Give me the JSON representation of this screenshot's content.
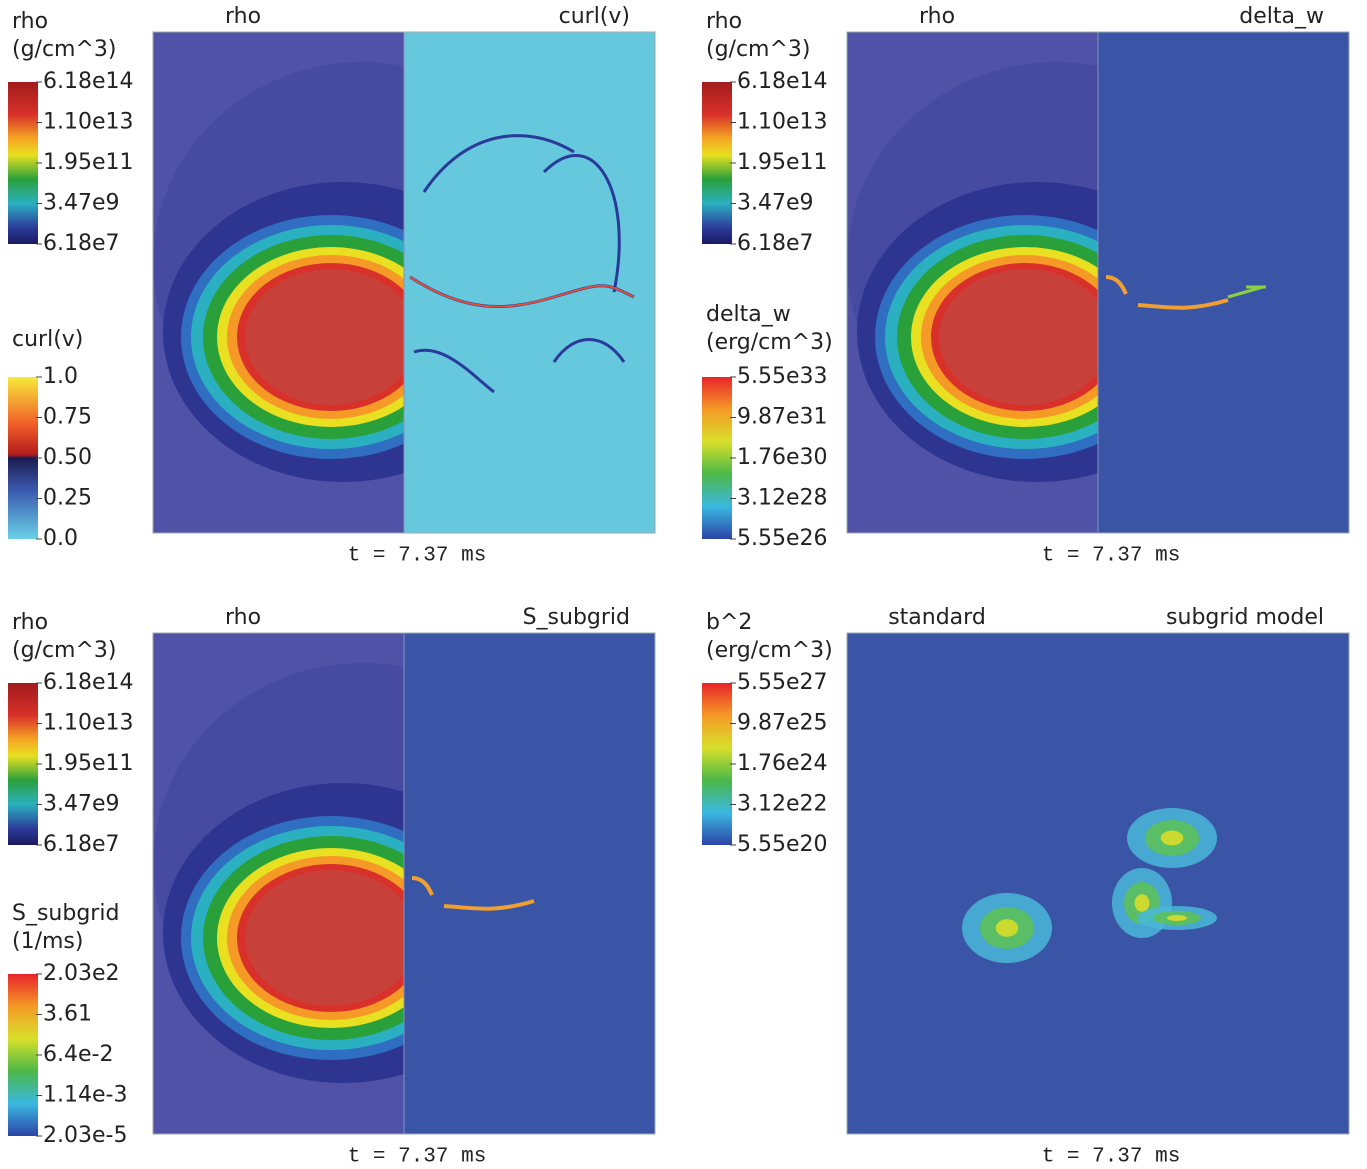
{
  "panels": [
    {
      "left_label": "rho",
      "right_label": "curl(v)",
      "time": "t = 7.37 ms",
      "colorbars": [
        {
          "title": [
            "rho",
            "(g/cm^3)"
          ],
          "ticks": [
            "6.18e14",
            "1.10e13",
            "1.95e11",
            "3.47e9",
            "6.18e7"
          ]
        },
        {
          "title": [
            "curl(v)"
          ],
          "ticks": [
            "1.0",
            "0.75",
            "0.50",
            "0.25",
            "0.0"
          ]
        }
      ]
    },
    {
      "left_label": "rho",
      "right_label": "delta_w",
      "time": "t = 7.37 ms",
      "colorbars": [
        {
          "title": [
            "rho",
            "(g/cm^3)"
          ],
          "ticks": [
            "6.18e14",
            "1.10e13",
            "1.95e11",
            "3.47e9",
            "6.18e7"
          ]
        },
        {
          "title": [
            "delta_w",
            "(erg/cm^3)"
          ],
          "ticks": [
            "5.55e33",
            "9.87e31",
            "1.76e30",
            "3.12e28",
            "5.55e26"
          ]
        }
      ]
    },
    {
      "left_label": "rho",
      "right_label": "S_subgrid",
      "time": "t = 7.37 ms",
      "colorbars": [
        {
          "title": [
            "rho",
            "(g/cm^3)"
          ],
          "ticks": [
            "6.18e14",
            "1.10e13",
            "1.95e11",
            "3.47e9",
            "6.18e7"
          ]
        },
        {
          "title": [
            "S_subgrid",
            "(1/ms)"
          ],
          "ticks": [
            "2.03e2",
            "3.61",
            "6.4e-2",
            "1.14e-3",
            "2.03e-5"
          ]
        }
      ]
    },
    {
      "left_label": "standard",
      "right_label": "subgrid model",
      "time": "t = 7.37 ms",
      "colorbars": [
        {
          "title": [
            "b^2",
            "(erg/cm^3)"
          ],
          "ticks": [
            "5.55e27",
            "9.87e25",
            "1.76e24",
            "3.12e22",
            "5.55e20"
          ]
        }
      ]
    }
  ]
}
